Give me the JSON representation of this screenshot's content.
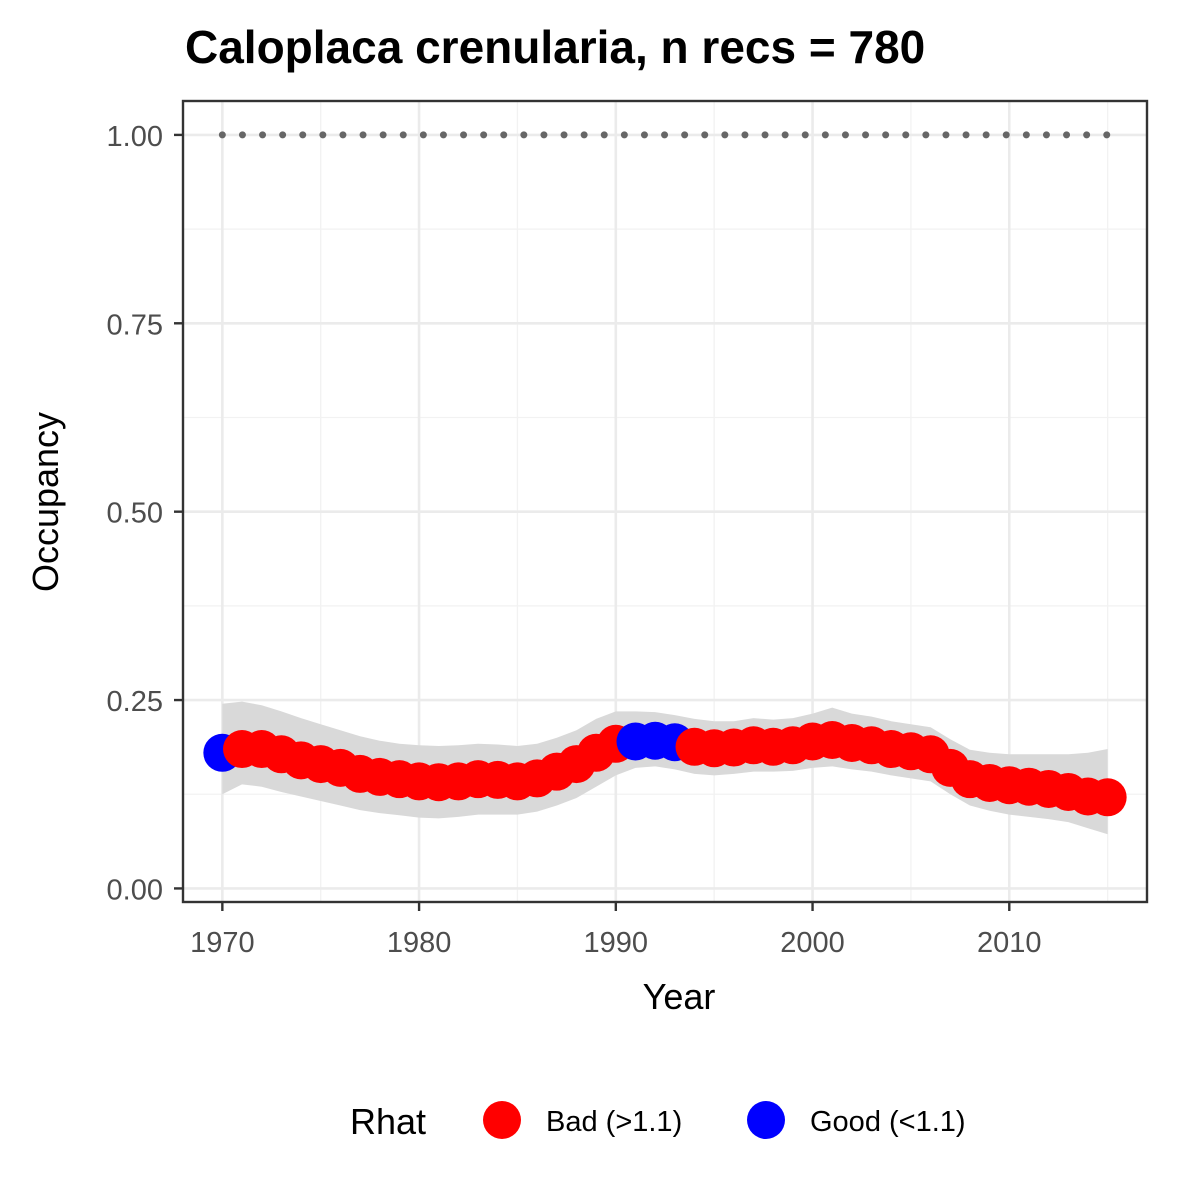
{
  "chart_data": {
    "type": "line",
    "title": "Caloplaca crenularia, n recs = 780",
    "xlabel": "Year",
    "ylabel": "Occupancy",
    "xlim": [
      1968,
      2017
    ],
    "ylim": [
      -0.018,
      1.045
    ],
    "x_ticks": [
      1970,
      1980,
      1990,
      2000,
      2010
    ],
    "x_tick_labels": [
      "1970",
      "1980",
      "1990",
      "2000",
      "2010"
    ],
    "y_ticks": [
      0,
      0.25,
      0.5,
      0.75,
      1
    ],
    "y_tick_labels": [
      "0.00",
      "0.25",
      "0.50",
      "0.75",
      "1.00"
    ],
    "grid": true,
    "colors": {
      "bad": "#ff0000",
      "good": "#0000ff",
      "ribbon": "#d9d9d9",
      "reference": "#666666"
    },
    "legend": {
      "title": "Rhat",
      "position": "bottom",
      "entries": [
        {
          "label": "Bad (>1.1)",
          "color": "#ff0000"
        },
        {
          "label": "Good (<1.1)",
          "color": "#0000ff"
        }
      ]
    },
    "reference_line": {
      "y": 1.0,
      "style": "dotted",
      "x": [
        1970,
        2015
      ]
    },
    "series": [
      {
        "x": [
          1970,
          1971,
          1972,
          1973,
          1974,
          1975,
          1976,
          1977,
          1978,
          1979,
          1980,
          1981,
          1982,
          1983,
          1984,
          1985,
          1986,
          1987,
          1988,
          1989,
          1990,
          1991,
          1992,
          1993,
          1994,
          1995,
          1996,
          1997,
          1998,
          1999,
          2000,
          2001,
          2002,
          2003,
          2004,
          2005,
          2006,
          2007,
          2008,
          2009,
          2010,
          2011,
          2012,
          2013,
          2014,
          2015
        ],
        "y": [
          0.18,
          0.185,
          0.185,
          0.178,
          0.17,
          0.165,
          0.16,
          0.152,
          0.148,
          0.145,
          0.142,
          0.141,
          0.142,
          0.145,
          0.144,
          0.142,
          0.146,
          0.155,
          0.165,
          0.18,
          0.192,
          0.195,
          0.196,
          0.194,
          0.188,
          0.186,
          0.187,
          0.19,
          0.188,
          0.19,
          0.195,
          0.197,
          0.193,
          0.19,
          0.185,
          0.182,
          0.178,
          0.16,
          0.145,
          0.14,
          0.137,
          0.135,
          0.132,
          0.128,
          0.122,
          0.121
        ],
        "ci_lower": [
          0.125,
          0.138,
          0.135,
          0.128,
          0.122,
          0.116,
          0.11,
          0.104,
          0.1,
          0.097,
          0.094,
          0.093,
          0.095,
          0.098,
          0.098,
          0.098,
          0.102,
          0.11,
          0.12,
          0.135,
          0.15,
          0.16,
          0.162,
          0.158,
          0.152,
          0.15,
          0.152,
          0.155,
          0.155,
          0.156,
          0.16,
          0.162,
          0.158,
          0.155,
          0.15,
          0.146,
          0.142,
          0.125,
          0.11,
          0.103,
          0.098,
          0.095,
          0.092,
          0.088,
          0.08,
          0.072
        ],
        "ci_upper": [
          0.245,
          0.248,
          0.243,
          0.235,
          0.226,
          0.218,
          0.21,
          0.202,
          0.196,
          0.192,
          0.19,
          0.189,
          0.19,
          0.192,
          0.191,
          0.189,
          0.192,
          0.2,
          0.21,
          0.225,
          0.235,
          0.235,
          0.234,
          0.23,
          0.225,
          0.222,
          0.222,
          0.226,
          0.224,
          0.226,
          0.232,
          0.24,
          0.232,
          0.228,
          0.222,
          0.218,
          0.214,
          0.198,
          0.184,
          0.18,
          0.178,
          0.178,
          0.178,
          0.178,
          0.18,
          0.185
        ],
        "rhat": [
          "Good",
          "Bad",
          "Bad",
          "Bad",
          "Bad",
          "Bad",
          "Bad",
          "Bad",
          "Bad",
          "Bad",
          "Bad",
          "Bad",
          "Bad",
          "Bad",
          "Bad",
          "Bad",
          "Bad",
          "Bad",
          "Bad",
          "Bad",
          "Bad",
          "Good",
          "Good",
          "Good",
          "Bad",
          "Bad",
          "Bad",
          "Bad",
          "Bad",
          "Bad",
          "Bad",
          "Bad",
          "Bad",
          "Bad",
          "Bad",
          "Bad",
          "Bad",
          "Bad",
          "Bad",
          "Bad",
          "Bad",
          "Bad",
          "Bad",
          "Bad",
          "Bad",
          "Bad"
        ]
      }
    ]
  }
}
